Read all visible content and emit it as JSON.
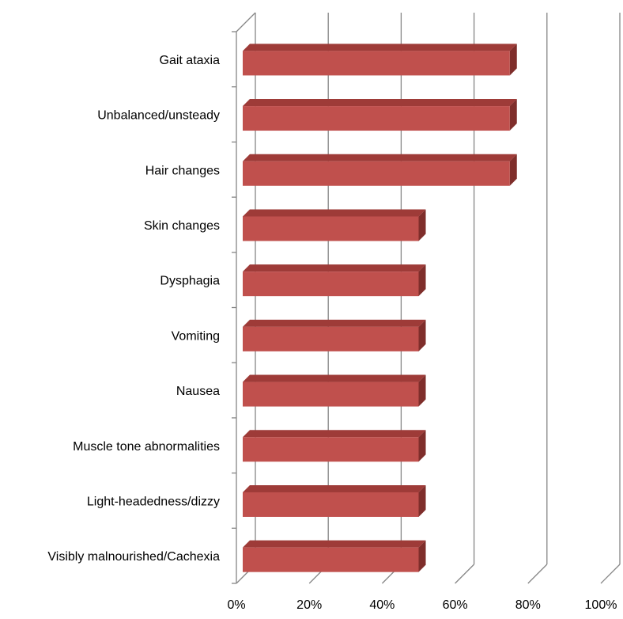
{
  "chart_data": {
    "type": "bar",
    "orientation": "horizontal",
    "three_d": true,
    "categories": [
      "Gait ataxia",
      "Unbalanced/unsteady",
      "Hair changes",
      "Skin changes",
      "Dysphagia",
      "Vomiting",
      "Nausea",
      "Muscle tone abnormalities",
      "Light-headedness/dizzy",
      "Visibly malnourished/Cachexia"
    ],
    "values": [
      75,
      75,
      75,
      50,
      50,
      50,
      50,
      50,
      50,
      50
    ],
    "xlim": [
      0,
      100
    ],
    "x_ticks": [
      "0%",
      "20%",
      "40%",
      "60%",
      "80%",
      "100%"
    ],
    "title": "",
    "xlabel": "",
    "ylabel": "",
    "grid": true,
    "legend": "none",
    "colors": {
      "bar_front": "#C0504D",
      "bar_top": "#9E3B38",
      "bar_side": "#7F2E2B",
      "grid": "#868686"
    }
  }
}
